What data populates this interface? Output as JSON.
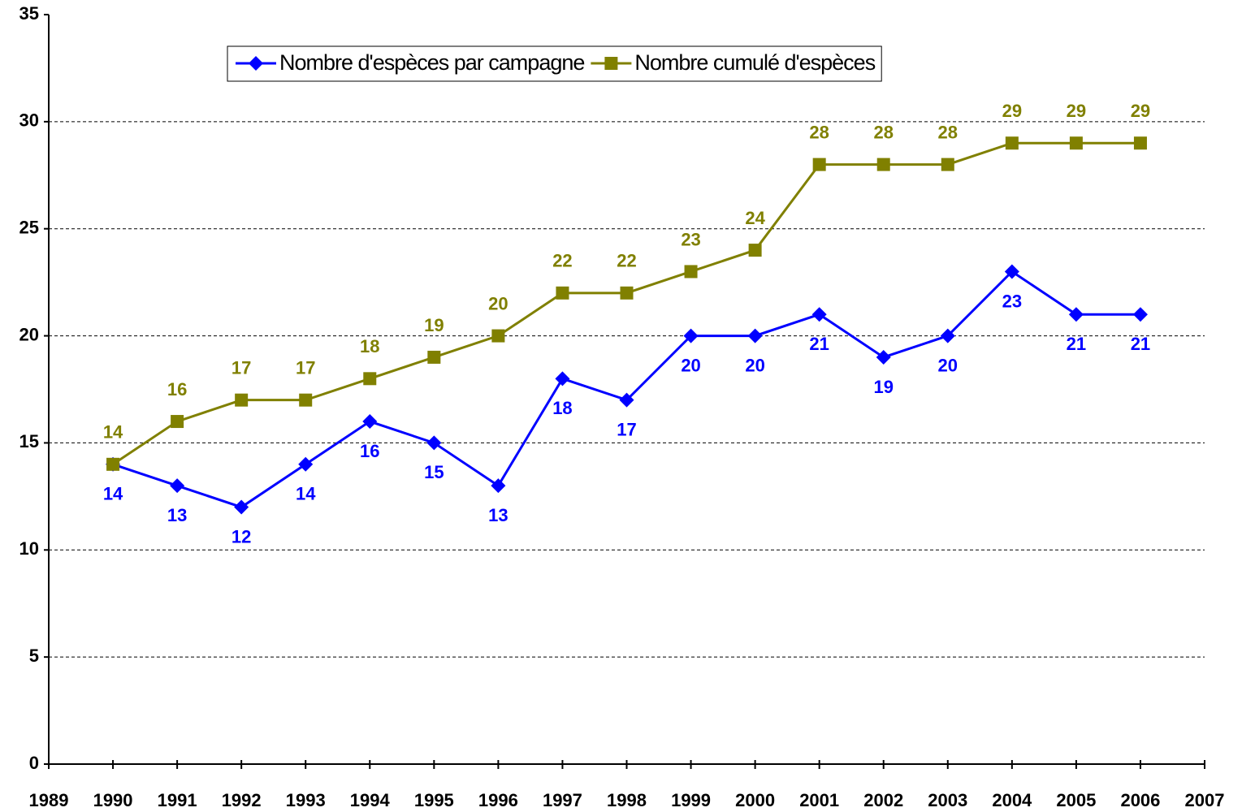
{
  "chart_data": {
    "type": "line",
    "x": [
      1990,
      1991,
      1992,
      1993,
      1994,
      1995,
      1996,
      1997,
      1998,
      1999,
      2000,
      2001,
      2002,
      2003,
      2004,
      2005,
      2006
    ],
    "series": [
      {
        "name": "Nombre d'espèces par campagne",
        "color": "#0000ff",
        "marker": "diamond",
        "label_position": "below",
        "values": [
          14,
          13,
          12,
          14,
          16,
          15,
          13,
          18,
          17,
          20,
          20,
          21,
          19,
          20,
          23,
          21,
          21
        ]
      },
      {
        "name": "Nombre cumulé d'espèces",
        "color": "#808000",
        "marker": "square",
        "label_position": "above",
        "values": [
          14,
          16,
          17,
          17,
          18,
          19,
          20,
          22,
          22,
          23,
          24,
          28,
          28,
          28,
          29,
          29,
          29
        ]
      }
    ],
    "xlim": [
      1989,
      2007
    ],
    "xticks": [
      1989,
      1990,
      1991,
      1992,
      1993,
      1994,
      1995,
      1996,
      1997,
      1998,
      1999,
      2000,
      2001,
      2002,
      2003,
      2004,
      2005,
      2006,
      2007
    ],
    "ylim": [
      0,
      35
    ],
    "yticks": [
      0,
      5,
      10,
      15,
      20,
      25,
      30,
      35
    ],
    "grid": true,
    "legend": "top"
  }
}
